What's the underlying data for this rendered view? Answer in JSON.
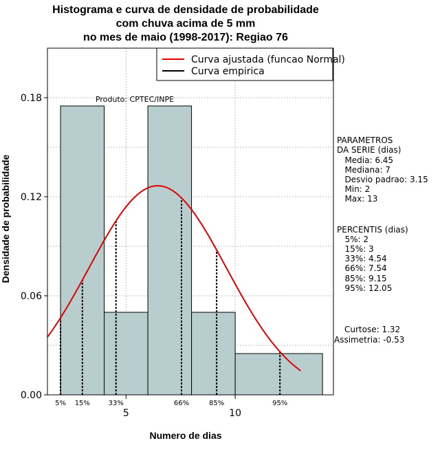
{
  "chart_data": {
    "type": "bar",
    "title_lines": [
      "Histograma e curva de densidade de probabilidade",
      "com chuva acima de 5 mm",
      "no mes de maio (1998-2017): Regiao 76"
    ],
    "xlabel": "Numero de dias",
    "ylabel": "Densidade de probabilidade",
    "xlim": [
      1.4,
      14.5
    ],
    "ylim": [
      0,
      0.21
    ],
    "x_ticks": [
      5,
      10
    ],
    "y_ticks": [
      0.0,
      0.06,
      0.12,
      0.18
    ],
    "y_tick_labels": [
      "0.00",
      "0.06",
      "0.12",
      "0.18"
    ],
    "grid": true,
    "legend_position": "top-right",
    "bins": [
      {
        "from": 2,
        "to": 4,
        "density": 0.175
      },
      {
        "from": 4,
        "to": 6,
        "density": 0.05
      },
      {
        "from": 6,
        "to": 8,
        "density": 0.175
      },
      {
        "from": 8,
        "to": 10,
        "density": 0.05
      },
      {
        "from": 10,
        "to": 14,
        "density": 0.025
      }
    ],
    "series": [
      {
        "name": "Curva ajustada (funcao Normal)",
        "color": "#e00000",
        "kind": "normal",
        "mean": 6.45,
        "sd": 3.15,
        "x_range": [
          1.4,
          13.0
        ]
      },
      {
        "name": "Curva empirica",
        "color": "#000000",
        "kind": "empirical"
      }
    ],
    "percentile_lines": [
      {
        "label": "5%",
        "x": 2
      },
      {
        "label": "15%",
        "x": 3
      },
      {
        "label": "33%",
        "x": 4.54
      },
      {
        "label": "66%",
        "x": 7.54
      },
      {
        "label": "85%",
        "x": 9.15
      },
      {
        "label": "95%",
        "x": 12.05
      }
    ],
    "annotation": "Produto: CPTEC/INPE",
    "bar_color": "#b8cece"
  },
  "side_panel": {
    "parametros_title": "PARAMETROS\nDA SERIE (dias)",
    "media": "   Media: 6.45",
    "mediana": "   Mediana: 7",
    "desvio": "   Desvio padrao: 3.15",
    "min": "   Min: 2",
    "max": "   Max: 13",
    "percentis_title": "PERCENTIS (dias)",
    "p5": "   5%: 2",
    "p15": "   15%: 3",
    "p33": "   33%: 4.54",
    "p66": "   66%: 7.54",
    "p85": "   85%: 9.15",
    "p95": "   95%: 12.05",
    "curtose": "Curtose: 1.32",
    "assimetria": "Assimetria: -0.53"
  }
}
